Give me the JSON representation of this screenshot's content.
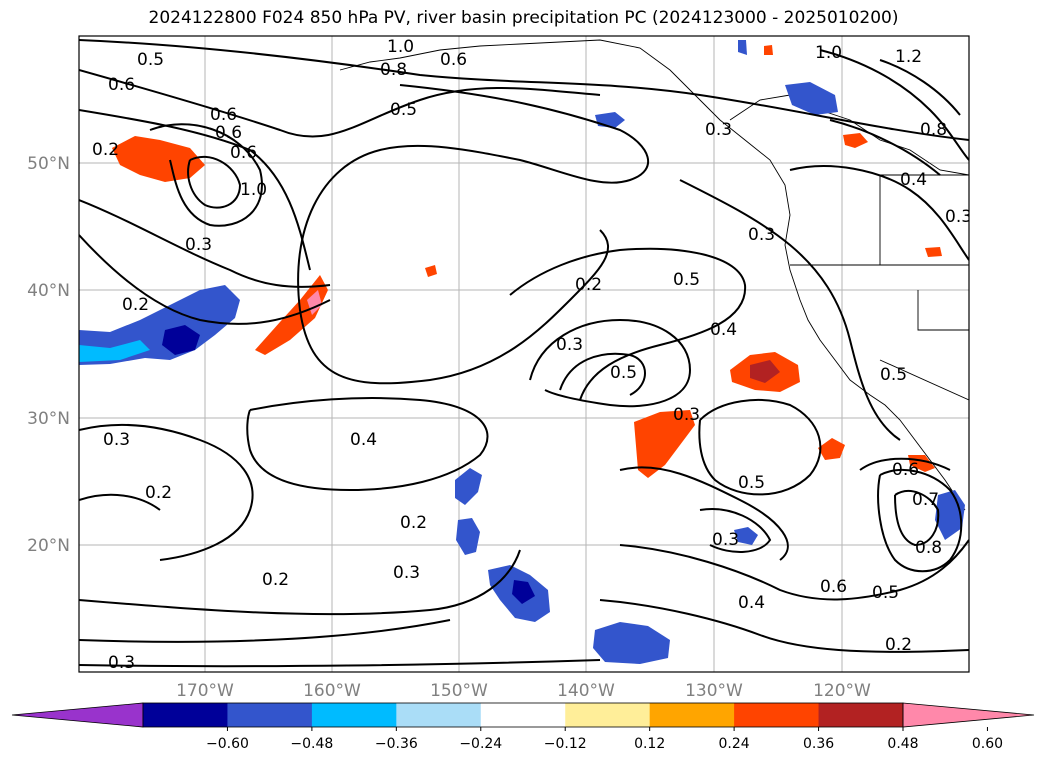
{
  "title": "2024122800 F024 850 hPa PV, river basin precipitation PC (2024123000 - 2025010200)",
  "map": {
    "lon_labels": [
      "170°W",
      "160°W",
      "150°W",
      "140°W",
      "130°W",
      "120°W"
    ],
    "lat_labels": [
      "50°N",
      "40°N",
      "30°N",
      "20°N"
    ],
    "contour_labels": [
      "0.5",
      "0.6",
      "1.0",
      "0.8",
      "0.6",
      "0.5",
      "0.6",
      "0.2",
      "0.6",
      "0.6",
      "1.0",
      "0.3",
      "0.2",
      "0.2",
      "0.3",
      "0.5",
      "0.4",
      "0.5",
      "0.3",
      "0.4",
      "0.3",
      "0.5",
      "0.3",
      "0.6",
      "0.5",
      "0.2",
      "0.4",
      "0.2",
      "0.3",
      "0.2",
      "0.3",
      "0.2",
      "0.3",
      "1.0",
      "1.2",
      "0.8",
      "0.4",
      "0.3",
      "0.3",
      "0.5",
      "0.6",
      "0.7",
      "0.8"
    ]
  },
  "colorbar": {
    "colors": [
      "#9933cc",
      "#000099",
      "#3355cc",
      "#00bbff",
      "#aaddf7",
      "#ffffff",
      "#ffee99",
      "#ffa500",
      "#ff4400",
      "#b22222",
      "#ff88aa"
    ],
    "tick_labels": [
      "−0.60",
      "−0.48",
      "−0.36",
      "−0.24",
      "−0.12",
      "0.12",
      "0.24",
      "0.36",
      "0.48",
      "0.60"
    ]
  }
}
